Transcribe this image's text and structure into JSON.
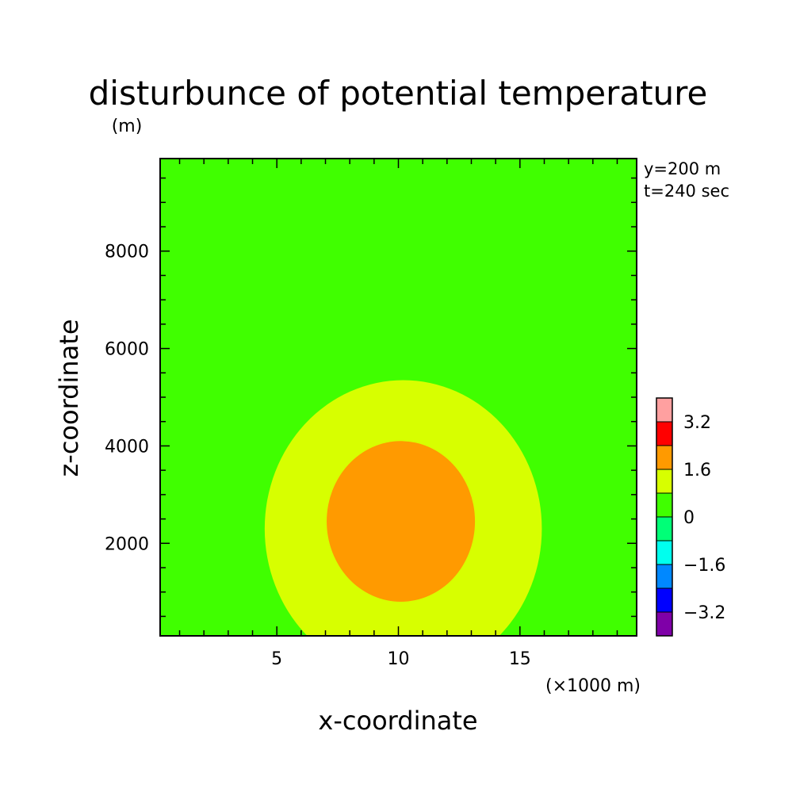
{
  "chart_data": {
    "type": "heatmap",
    "title": "disturbunce of potential temperature",
    "unit_label": "(m)",
    "annotation": [
      "y=200 m",
      "t=240 sec"
    ],
    "xlabel": "x-coordinate",
    "x_unit": "(×1000 m)",
    "ylabel": "z-coordinate",
    "xlim": [
      0.2,
      19.8
    ],
    "ylim": [
      100,
      9900
    ],
    "x_ticks": [
      5,
      10,
      15
    ],
    "y_ticks": [
      2000,
      4000,
      6000,
      8000
    ],
    "x_minor_step": 1,
    "y_minor_step": 500,
    "background_color": "#40ff00",
    "contours": [
      {
        "level_range": [
          0.8,
          1.6
        ],
        "color": "#d7ff00",
        "center": [
          10.2,
          2300
        ],
        "rx": 5.7,
        "ry": 3050
      },
      {
        "level_range": [
          1.6,
          2.4
        ],
        "color": "#ff9a00",
        "center": [
          10.1,
          2450
        ],
        "rx": 3.05,
        "ry": 1650
      }
    ],
    "colorbar": {
      "colors": [
        "#7f00a8",
        "#0000ff",
        "#0088ff",
        "#00ffee",
        "#00ff77",
        "#40ff00",
        "#d7ff00",
        "#ff9a00",
        "#ff0000",
        "#ffa0a0"
      ],
      "tick_labels": [
        "−3.2",
        "−1.6",
        "0",
        "1.6",
        "3.2"
      ]
    }
  }
}
